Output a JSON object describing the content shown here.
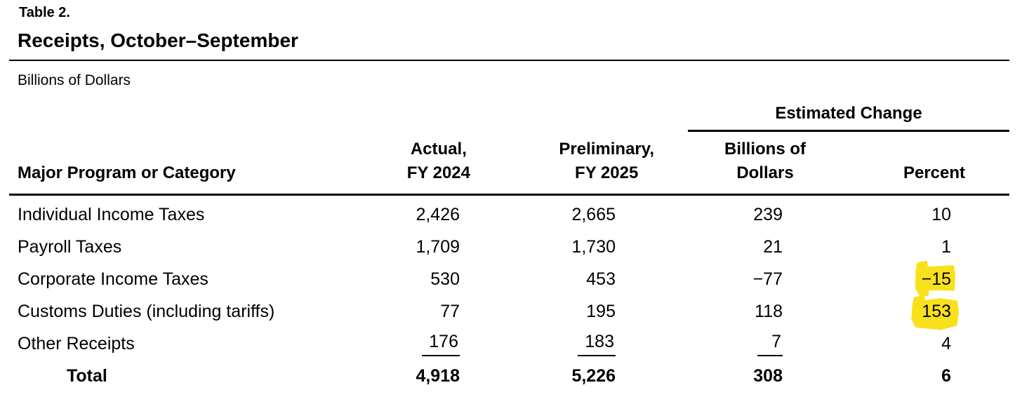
{
  "page": {
    "table_label": "Table 2.",
    "title": "Receipts, October–September",
    "units_note": "Billions of Dollars"
  },
  "table": {
    "spanner_header": "Estimated Change",
    "columns": {
      "category": "Major Program or Category",
      "actual_line1": "Actual,",
      "actual_line2": "FY 2024",
      "preliminary_line1": "Preliminary,",
      "preliminary_line2": "FY 2025",
      "change_billions_line1": "Billions of",
      "change_billions_line2": "Dollars",
      "change_percent": "Percent"
    },
    "rows": [
      {
        "label": "Individual Income Taxes",
        "fy2024": "2,426",
        "fy2025": "2,665",
        "change_billions": "239",
        "change_percent": "10"
      },
      {
        "label": "Payroll Taxes",
        "fy2024": "1,709",
        "fy2025": "1,730",
        "change_billions": "21",
        "change_percent": "1"
      },
      {
        "label": "Corporate Income Taxes",
        "fy2024": "530",
        "fy2025": "453",
        "change_billions": "−77",
        "change_percent": "−15",
        "percent_highlighted": true
      },
      {
        "label": "Customs Duties (including tariffs)",
        "fy2024": "77",
        "fy2025": "195",
        "change_billions": "118",
        "change_percent": "153",
        "percent_highlighted": true
      },
      {
        "label": "Other Receipts",
        "fy2024": "176",
        "fy2025": "183",
        "change_billions": "7",
        "change_percent": "4",
        "subtotal_underlined": true
      }
    ],
    "total_row": {
      "label": "Total",
      "fy2024": "4,918",
      "fy2025": "5,226",
      "change_billions": "308",
      "change_percent": "6"
    }
  },
  "colors": {
    "text": "#000000",
    "rules": "#000000",
    "highlight_yellow": "#F8E11A"
  }
}
